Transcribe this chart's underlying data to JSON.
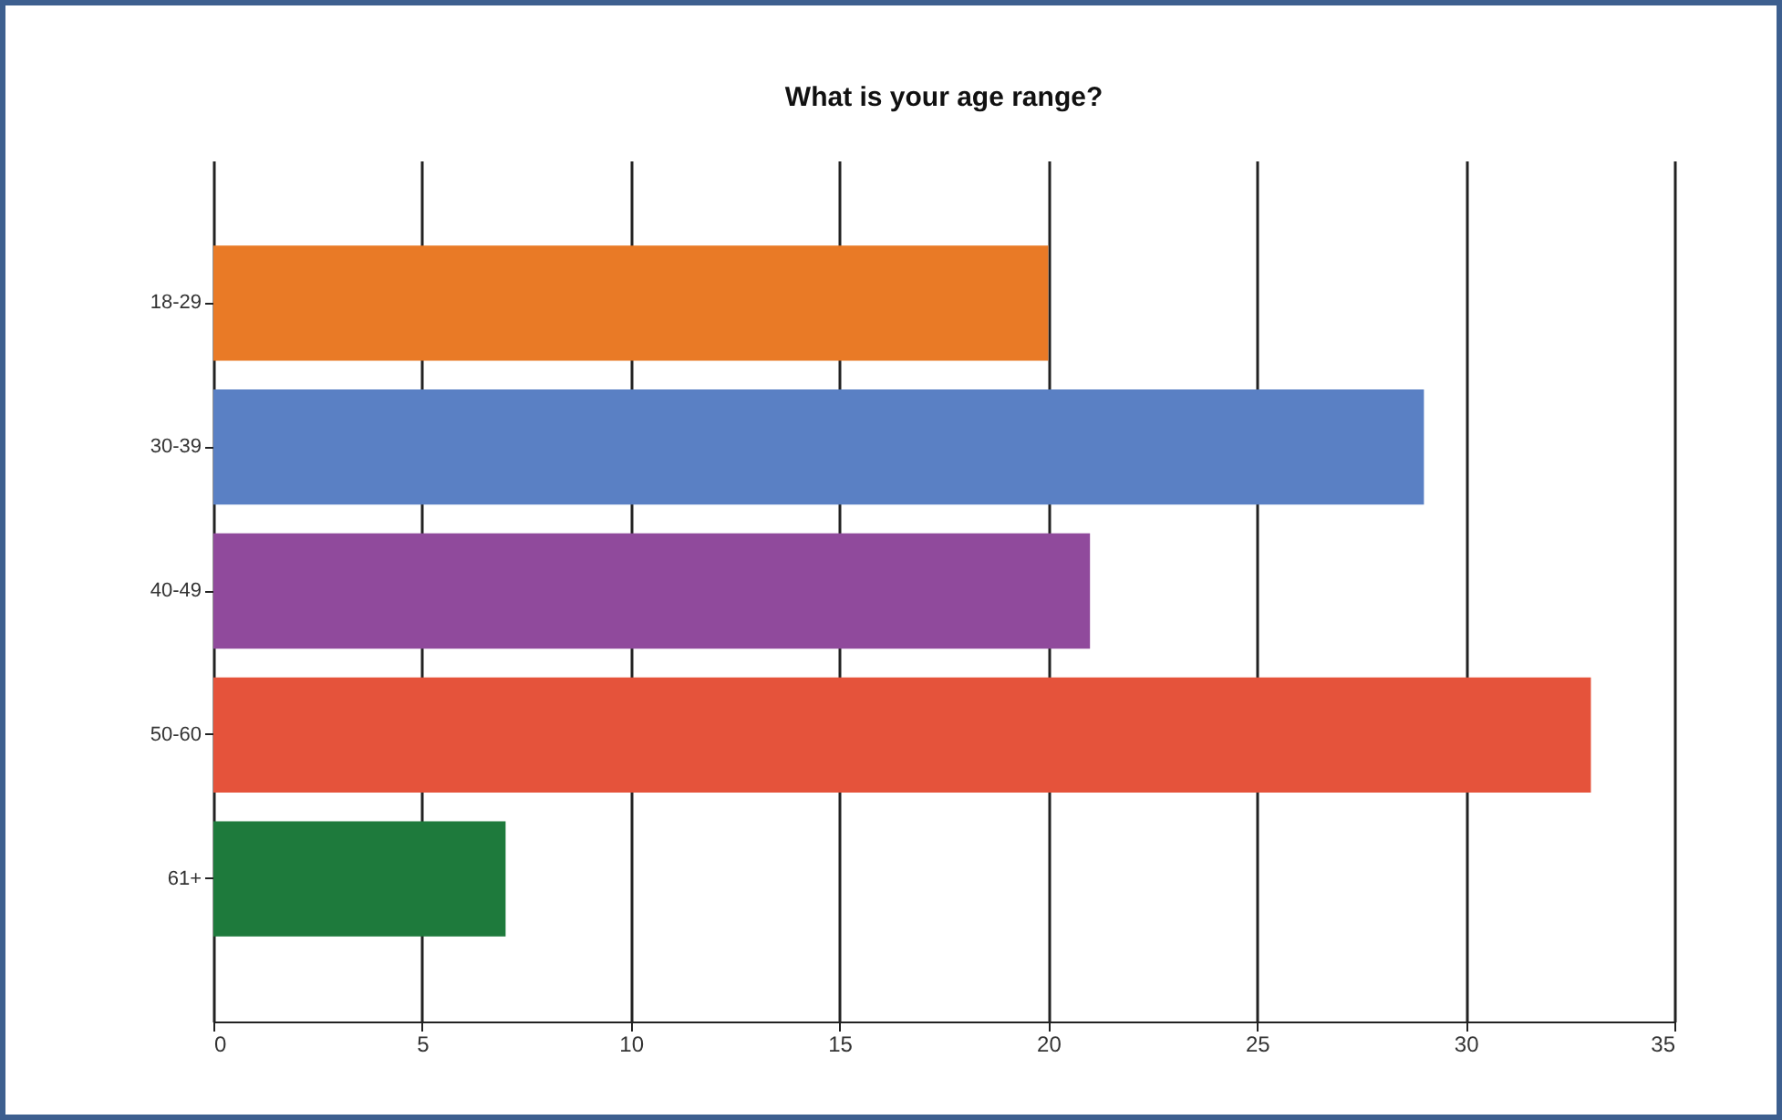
{
  "chart_data": {
    "type": "bar",
    "orientation": "horizontal",
    "title": "What is your age range?",
    "categories": [
      "18-29",
      "30-39",
      "40-49",
      "50-60",
      "61+"
    ],
    "values": [
      20,
      29,
      21,
      33,
      7
    ],
    "colors": [
      "#e97a26",
      "#5a80c4",
      "#904a9c",
      "#e5533b",
      "#1e7a3c"
    ],
    "xlim": [
      0,
      35
    ],
    "xticks": [
      0,
      5,
      10,
      15,
      20,
      25,
      30,
      35
    ],
    "grid": "x"
  }
}
